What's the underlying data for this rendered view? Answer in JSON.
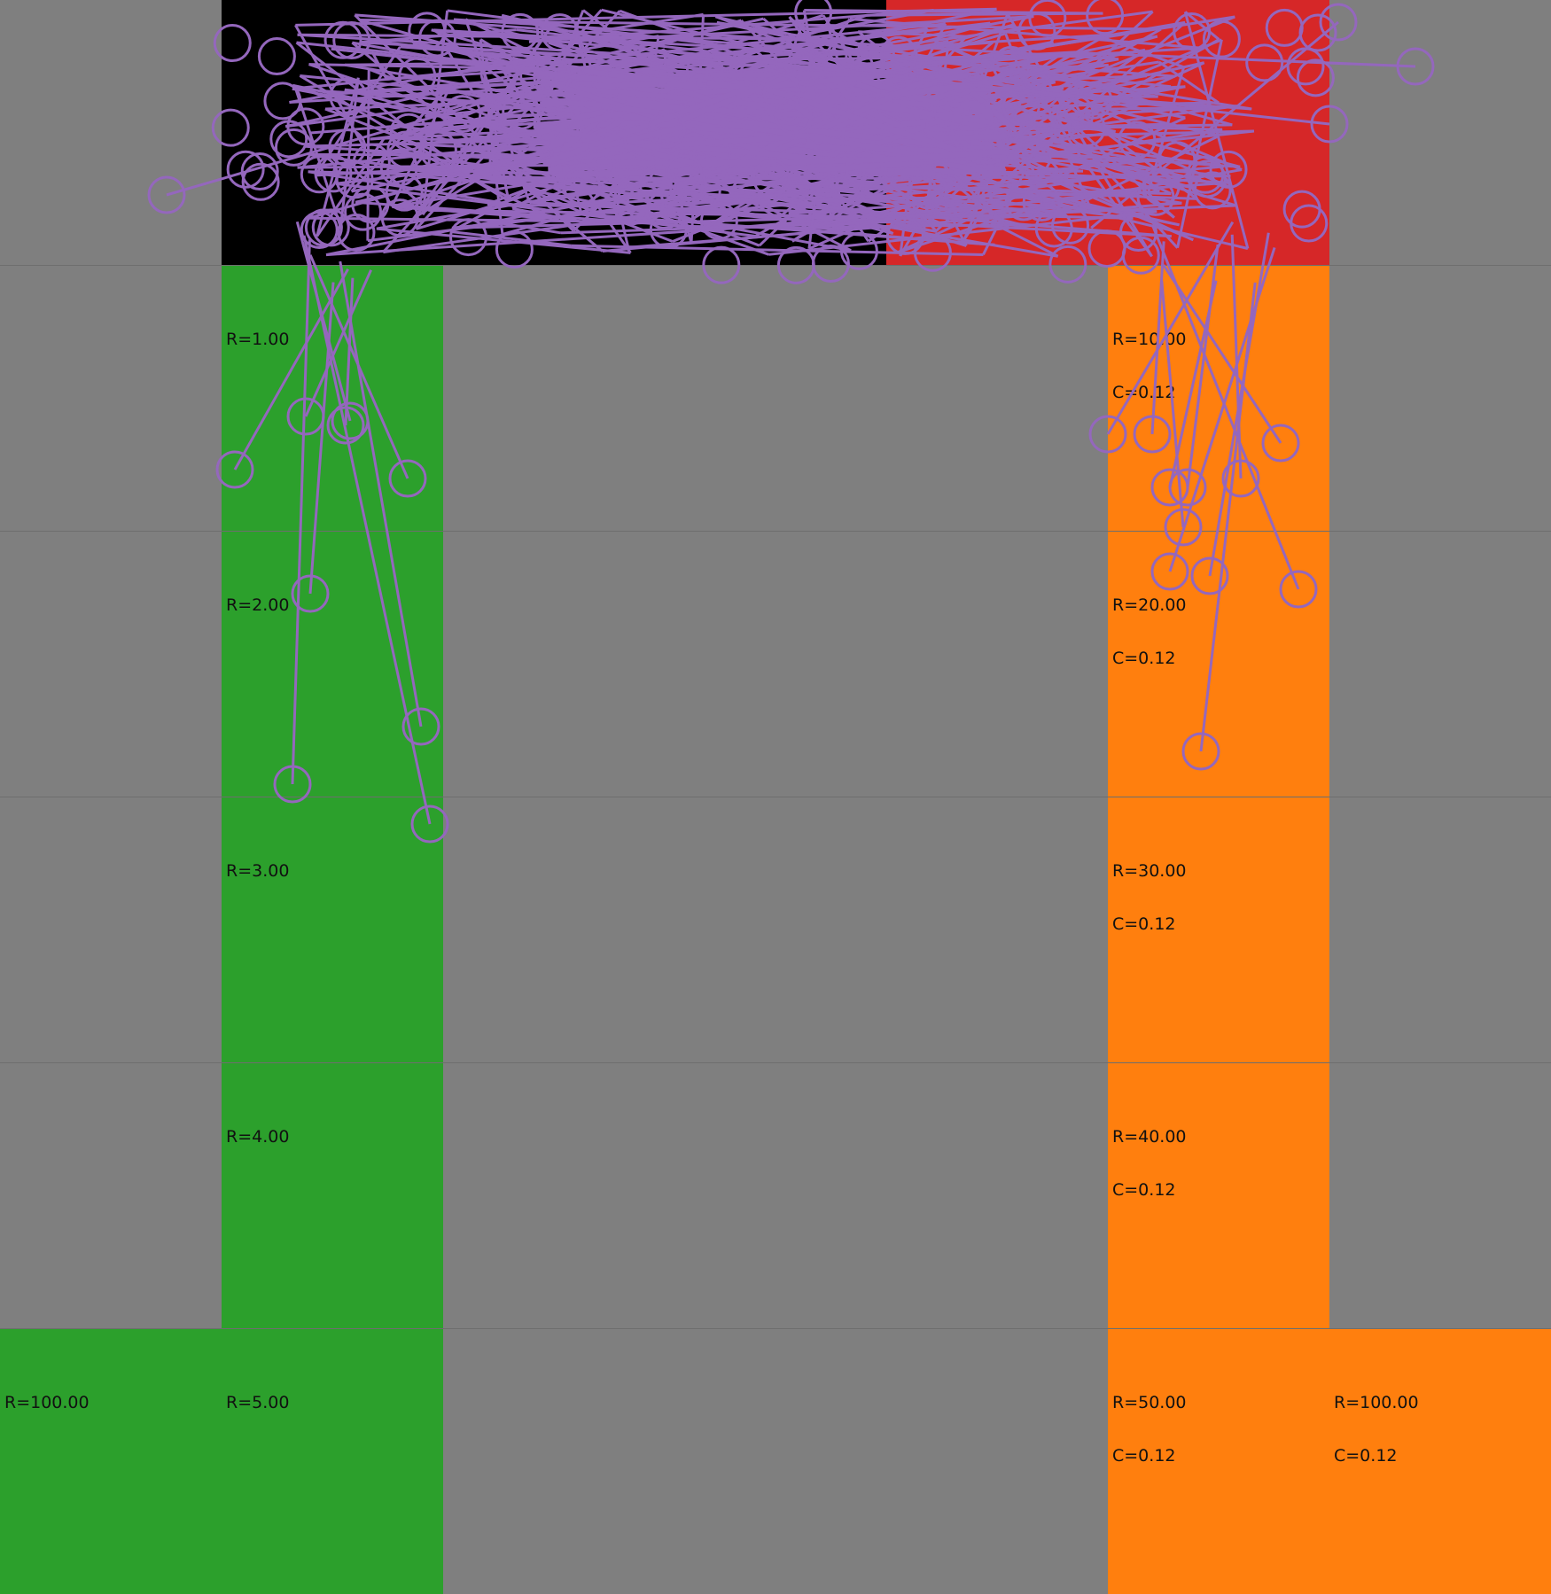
{
  "colors": {
    "background": "#7f7f7f",
    "green": "#2ca02c",
    "orange": "#ff7f0e",
    "red": "#d62728",
    "black": "#000000",
    "trace": "#9467bd"
  },
  "left_column": {
    "r1": "R=1.00",
    "r2": "R=2.00",
    "r3": "R=3.00",
    "r4": "R=4.00",
    "r5": "R=5.00",
    "r100": "R=100.00"
  },
  "right_column": {
    "r10": "R=10.00",
    "c10": "C=0.12",
    "r20": "R=20.00",
    "c20": "C=0.12",
    "r30": "R=30.00",
    "c30": "C=0.12",
    "r40": "R=40.00",
    "c40": "C=0.12",
    "r50": "R=50.00",
    "c50": "C=0.12",
    "r100": "R=100.00",
    "c100": "C=0.12"
  }
}
